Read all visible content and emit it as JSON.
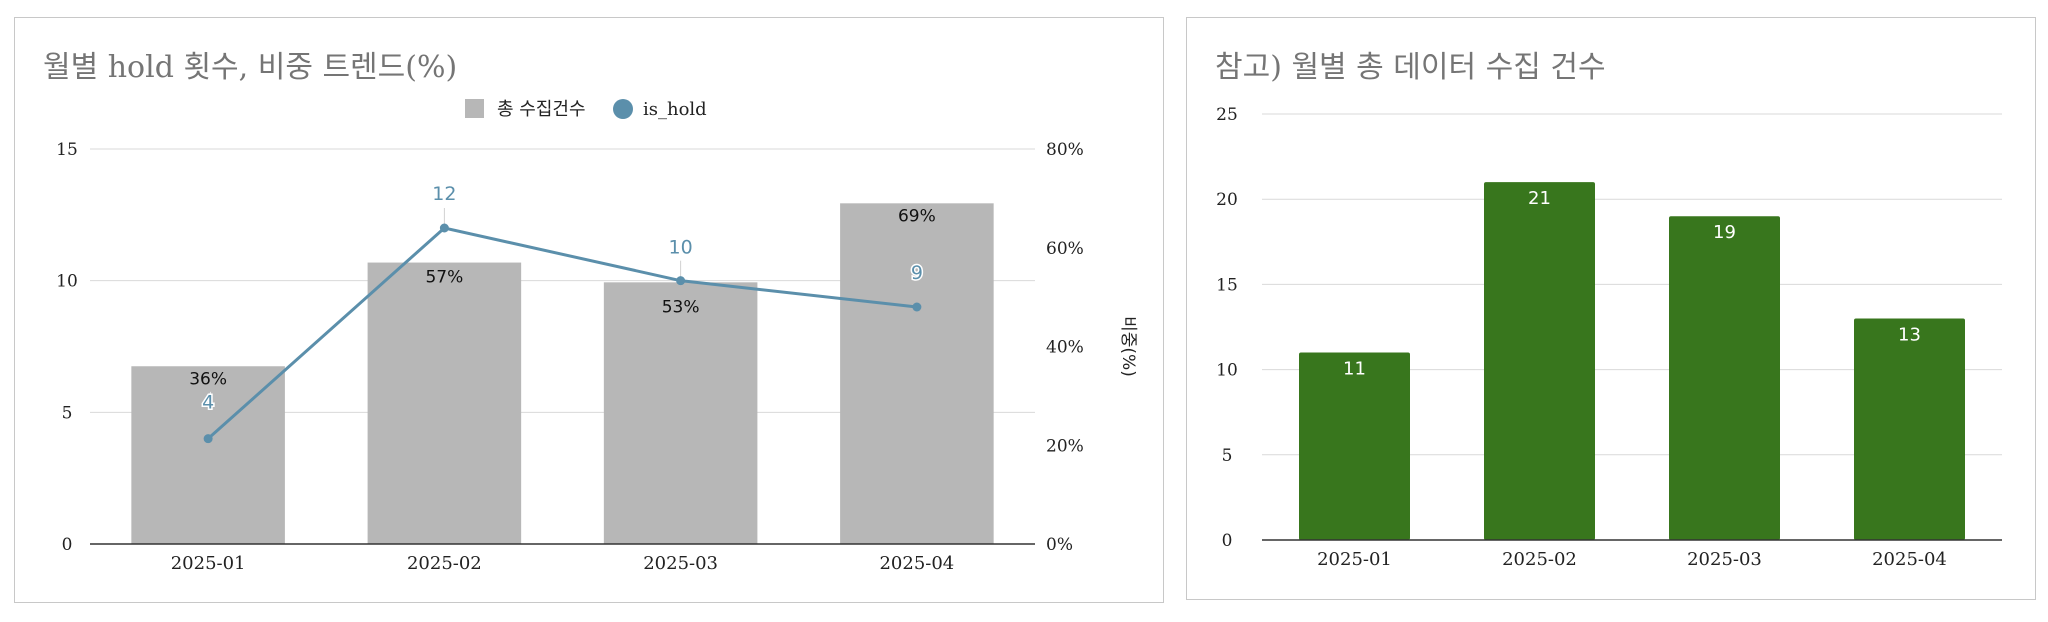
{
  "chart_data": [
    {
      "type": "bar",
      "title": "월별 hold 횟수, 비중 트렌드(%)",
      "categories": [
        "2025-01",
        "2025-02",
        "2025-03",
        "2025-04"
      ],
      "y_left": {
        "min": 0,
        "max": 15,
        "ticks": [
          "0",
          "5",
          "10",
          "15"
        ],
        "tick_values": [
          0,
          5,
          10,
          15
        ]
      },
      "y_right": {
        "label": "비중(%)",
        "min": 0,
        "max": 80,
        "ticks": [
          "0%",
          "20%",
          "40%",
          "60%",
          "80%"
        ],
        "tick_values": [
          0,
          20,
          40,
          60,
          80
        ]
      },
      "grid": true,
      "legend_position": "top",
      "series": [
        {
          "name": "총 수집건수",
          "type": "bar",
          "axis": "right",
          "color": "#b7b7b7",
          "values": [
            36,
            57,
            53,
            69
          ],
          "labels": [
            "36%",
            "57%",
            "53%",
            "69%"
          ]
        },
        {
          "name": "is_hold",
          "type": "line",
          "axis": "left",
          "color": "#5b8fab",
          "values": [
            4,
            12,
            10,
            9
          ],
          "labels": [
            "4",
            "12",
            "10",
            "9"
          ]
        }
      ]
    },
    {
      "type": "bar",
      "title": "참고) 월별 총 데이터 수집 건수",
      "categories": [
        "2025-01",
        "2025-02",
        "2025-03",
        "2025-04"
      ],
      "y": {
        "min": 0,
        "max": 25,
        "ticks": [
          "0",
          "5",
          "10",
          "15",
          "20",
          "25"
        ],
        "tick_values": [
          0,
          5,
          10,
          15,
          20,
          25
        ]
      },
      "grid": true,
      "series": [
        {
          "color": "#38761d",
          "values": [
            11,
            21,
            19,
            13
          ],
          "labels": [
            "11",
            "21",
            "19",
            "13"
          ]
        }
      ]
    }
  ]
}
